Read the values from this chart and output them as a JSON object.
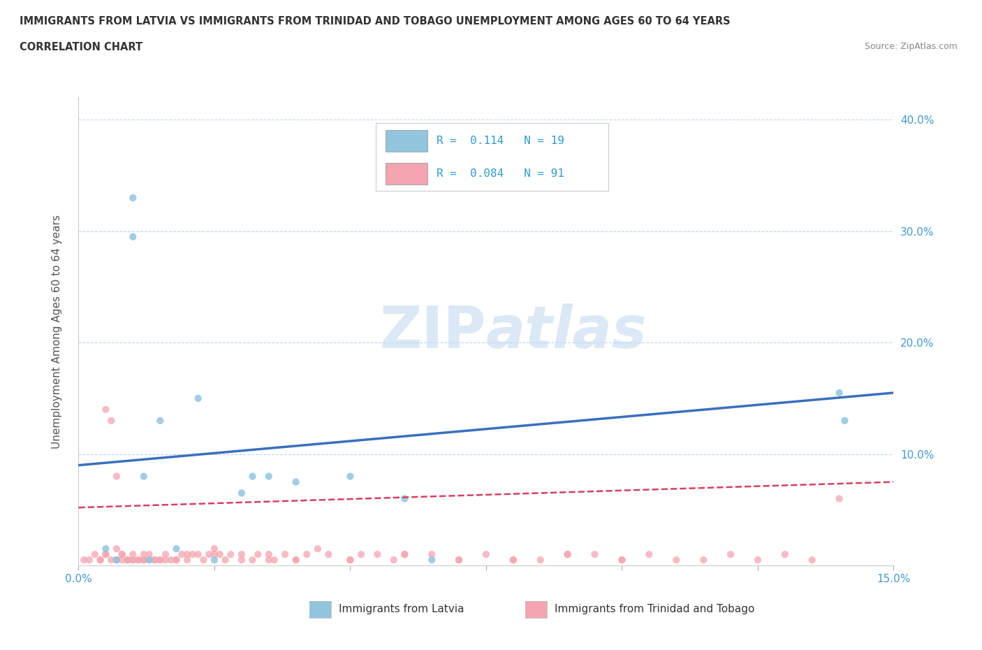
{
  "title_line1": "IMMIGRANTS FROM LATVIA VS IMMIGRANTS FROM TRINIDAD AND TOBAGO UNEMPLOYMENT AMONG AGES 60 TO 64 YEARS",
  "title_line2": "CORRELATION CHART",
  "source_text": "Source: ZipAtlas.com",
  "ylabel": "Unemployment Among Ages 60 to 64 years",
  "xlim": [
    0.0,
    0.15
  ],
  "ylim": [
    0.0,
    0.42
  ],
  "watermark_zip": "ZIP",
  "watermark_atlas": "atlas",
  "color_latvia": "#92C5DE",
  "color_tt": "#F4A5B0",
  "trendline_latvia_color": "#3A6FBF",
  "trendline_tt_color": "#D44060",
  "legend_label1": "Immigrants from Latvia",
  "legend_label2": "Immigrants from Trinidad and Tobago",
  "latvia_x": [
    0.005,
    0.007,
    0.01,
    0.01,
    0.012,
    0.013,
    0.015,
    0.018,
    0.022,
    0.025,
    0.03,
    0.032,
    0.035,
    0.04,
    0.05,
    0.06,
    0.065,
    0.14,
    0.141
  ],
  "latvia_y": [
    0.015,
    0.005,
    0.33,
    0.295,
    0.08,
    0.005,
    0.13,
    0.015,
    0.15,
    0.005,
    0.065,
    0.08,
    0.08,
    0.075,
    0.08,
    0.06,
    0.005,
    0.155,
    0.13
  ],
  "tt_x": [
    0.001,
    0.002,
    0.003,
    0.004,
    0.005,
    0.005,
    0.006,
    0.007,
    0.007,
    0.007,
    0.008,
    0.008,
    0.009,
    0.009,
    0.01,
    0.01,
    0.011,
    0.012,
    0.012,
    0.013,
    0.013,
    0.014,
    0.015,
    0.015,
    0.016,
    0.017,
    0.018,
    0.019,
    0.02,
    0.021,
    0.022,
    0.023,
    0.024,
    0.025,
    0.026,
    0.027,
    0.028,
    0.03,
    0.032,
    0.033,
    0.035,
    0.036,
    0.038,
    0.04,
    0.042,
    0.044,
    0.046,
    0.05,
    0.052,
    0.055,
    0.058,
    0.06,
    0.065,
    0.07,
    0.075,
    0.08,
    0.085,
    0.09,
    0.095,
    0.1,
    0.105,
    0.11,
    0.115,
    0.12,
    0.125,
    0.13,
    0.135,
    0.14,
    0.004,
    0.005,
    0.006,
    0.007,
    0.008,
    0.009,
    0.01,
    0.011,
    0.012,
    0.014,
    0.016,
    0.018,
    0.02,
    0.025,
    0.03,
    0.035,
    0.04,
    0.05,
    0.06,
    0.07,
    0.08,
    0.09,
    0.1
  ],
  "tt_y": [
    0.005,
    0.005,
    0.01,
    0.005,
    0.14,
    0.01,
    0.13,
    0.08,
    0.015,
    0.005,
    0.005,
    0.01,
    0.005,
    0.005,
    0.005,
    0.01,
    0.005,
    0.01,
    0.005,
    0.01,
    0.005,
    0.005,
    0.005,
    0.005,
    0.01,
    0.005,
    0.005,
    0.01,
    0.005,
    0.01,
    0.01,
    0.005,
    0.01,
    0.015,
    0.01,
    0.005,
    0.01,
    0.01,
    0.005,
    0.01,
    0.01,
    0.005,
    0.01,
    0.005,
    0.01,
    0.015,
    0.01,
    0.005,
    0.01,
    0.01,
    0.005,
    0.01,
    0.01,
    0.005,
    0.01,
    0.005,
    0.005,
    0.01,
    0.01,
    0.005,
    0.01,
    0.005,
    0.005,
    0.01,
    0.005,
    0.01,
    0.005,
    0.06,
    0.005,
    0.01,
    0.005,
    0.005,
    0.01,
    0.005,
    0.005,
    0.005,
    0.005,
    0.005,
    0.005,
    0.005,
    0.01,
    0.01,
    0.005,
    0.005,
    0.005,
    0.005,
    0.01,
    0.005,
    0.005,
    0.01,
    0.005
  ]
}
